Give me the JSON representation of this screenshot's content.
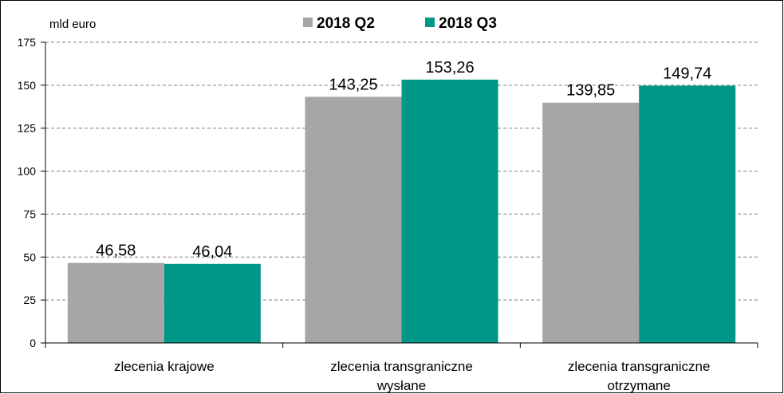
{
  "chart_data": {
    "type": "bar",
    "unit_label": "mld euro",
    "categories": [
      [
        "zlecenia krajowe"
      ],
      [
        "zlecenia transgraniczne",
        "wysłane"
      ],
      [
        "zlecenia transgraniczne",
        "otrzymane"
      ]
    ],
    "series": [
      {
        "name": "2018 Q2",
        "color": "#a6a6a6",
        "values": [
          46.58,
          143.25,
          139.85
        ],
        "labels": [
          "46,58",
          "143,25",
          "139,85"
        ]
      },
      {
        "name": "2018 Q3",
        "color": "#009688",
        "values": [
          46.04,
          153.26,
          149.74
        ],
        "labels": [
          "46,04",
          "153,26",
          "149,74"
        ]
      }
    ],
    "ylim": [
      0,
      175
    ],
    "yticks": [
      0,
      25,
      50,
      75,
      100,
      125,
      150,
      175
    ],
    "grid": true,
    "legend_position": "top"
  }
}
